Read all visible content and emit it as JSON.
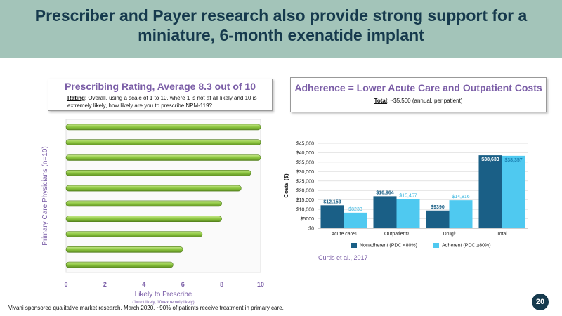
{
  "header": {
    "title": "Prescriber and Payer research also provide strong support for a miniature, 6-month exenatide implant"
  },
  "left_box": {
    "title": "Prescribing Rating, Average 8.3 out of 10",
    "question_label": "Rating",
    "question_text": ": Overall, using a scale of 1 to 10, where 1 is not at all likely and 10 is extremely likely, how likely are you to prescribe NPM-119?"
  },
  "right_box": {
    "title": "Adherence = Lower Acute Care and Outpatient Costs",
    "total_label": "Total",
    "total_text": ": ~$5,500 (annual, per patient)"
  },
  "citation": "Curtis et al., 2017",
  "footer": "Vivani sponsored qualitative market research, March 2020.  ~90% of patients receive treatment in primary care.",
  "page_number": "20",
  "colors": {
    "header_bg": "#a3c4b9",
    "title": "#163a4d",
    "accent": "#7b5ea7",
    "green": "#8cc63f",
    "nonadherent": "#1a5f86",
    "adherent": "#4fc9f0"
  },
  "chart_data": [
    {
      "type": "bar",
      "orientation": "horizontal",
      "title": "",
      "xlabel": "Likely to Prescribe",
      "xlabel_sub": "(1=not likely, 10=extremely likely)",
      "ylabel": "Primary Care Physicians (n=10)",
      "xlim": [
        0,
        10
      ],
      "xticks": [
        "0",
        "2",
        "4",
        "6",
        "8",
        "10"
      ],
      "values": [
        10,
        10,
        10,
        9.5,
        9,
        8,
        8,
        7,
        6,
        5.5
      ]
    },
    {
      "type": "bar",
      "title": "",
      "xlabel": "",
      "ylabel": "Costs ($)",
      "ylim": [
        0,
        45000
      ],
      "yticks": [
        "$0",
        "$5000",
        "$10,000",
        "$15,000",
        "$20,000",
        "$25,000",
        "$30,000",
        "$35,000",
        "$40,000",
        "$45,000"
      ],
      "categories": [
        "Acute careᵃ",
        "Outpatientᵃ",
        "Drugᵇ",
        "Total"
      ],
      "series": [
        {
          "name": "Nonadherent (PDC <80%)",
          "values": [
            12153,
            16964,
            9390,
            38633
          ],
          "labels": [
            "$12,153",
            "$16,964",
            "$9390",
            "$38,633"
          ]
        },
        {
          "name": "Adherent (PDC ≥80%)",
          "values": [
            8233,
            15457,
            14816,
            38357
          ],
          "labels": [
            "$8233",
            "$15,457",
            "$14,816",
            "$38,357"
          ]
        }
      ]
    }
  ]
}
